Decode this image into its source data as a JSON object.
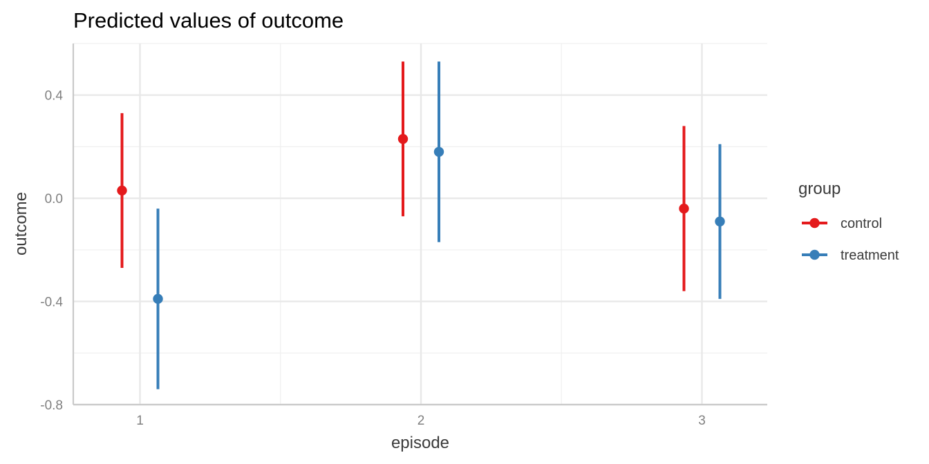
{
  "chart_data": {
    "type": "scatter",
    "title": "Predicted values of outcome",
    "xlabel": "episode",
    "ylabel": "outcome",
    "categories": [
      "1",
      "2",
      "3"
    ],
    "ylim": [
      -0.8,
      0.6
    ],
    "y_ticks": [
      "0.4",
      "0.0",
      "-0.4",
      "-0.8"
    ],
    "grid": true,
    "legend": {
      "title": "group",
      "position": "right"
    },
    "series": [
      {
        "name": "control",
        "color": "#e41a1c",
        "values": [
          0.03,
          0.23,
          -0.04
        ],
        "lower": [
          -0.27,
          -0.07,
          -0.36
        ],
        "upper": [
          0.33,
          0.53,
          0.28
        ]
      },
      {
        "name": "treatment",
        "color": "#377eb8",
        "values": [
          -0.39,
          0.18,
          -0.09
        ],
        "lower": [
          -0.74,
          -0.17,
          -0.39
        ],
        "upper": [
          -0.04,
          0.53,
          0.21
        ]
      }
    ]
  }
}
